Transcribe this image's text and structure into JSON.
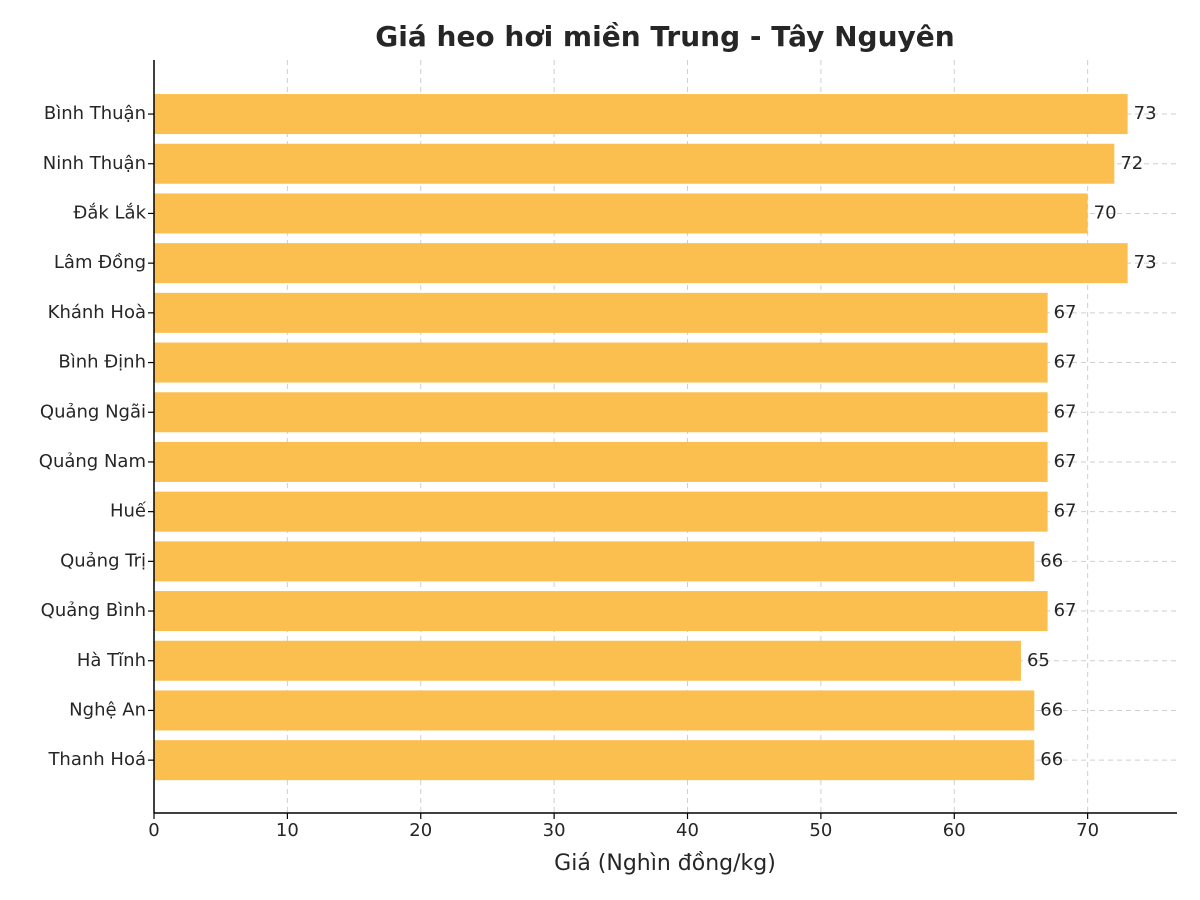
{
  "chart_data": {
    "type": "bar",
    "orientation": "horizontal",
    "title": "Giá heo hơi miền Trung - Tây Nguyên",
    "x_label": "Giá (Nghìn đồng/kg)",
    "categories": [
      "Bình Thuận",
      "Ninh Thuận",
      "Đắk Lắk",
      "Lâm Đồng",
      "Khánh Hoà",
      "Bình Định",
      "Quảng Ngãi",
      "Quảng Nam",
      "Huế",
      "Quảng Trị",
      "Quảng Bình",
      "Hà Tĩnh",
      "Nghệ An",
      "Thanh Hoá"
    ],
    "values": [
      73,
      72,
      70,
      73,
      67,
      67,
      67,
      67,
      67,
      66,
      67,
      65,
      66,
      66
    ],
    "color": "#fbbf4f",
    "xlim": [
      0,
      76.7
    ],
    "xticks": [
      0,
      10,
      20,
      30,
      40,
      50,
      60,
      70
    ],
    "grid": true,
    "data_labels": true
  }
}
